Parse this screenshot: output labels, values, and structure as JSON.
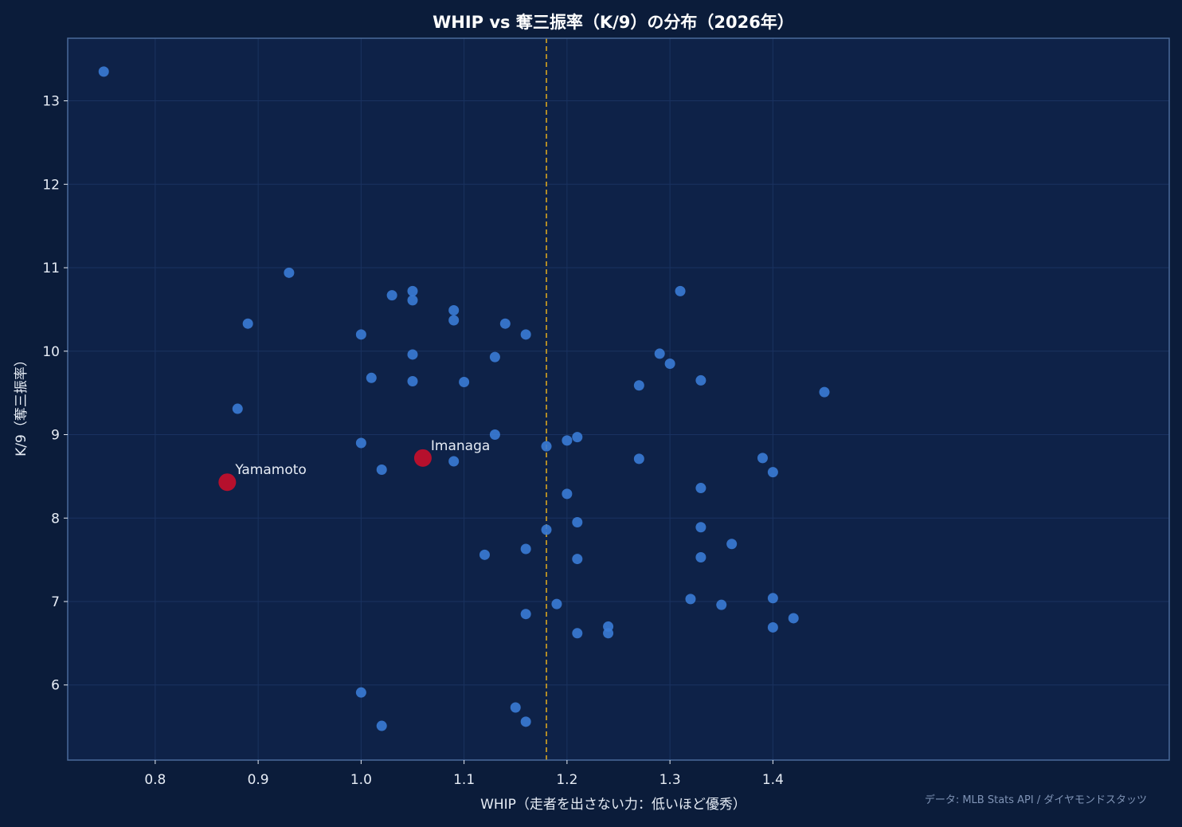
{
  "chart_data": {
    "type": "scatter",
    "title": "WHIP vs 奪三振率（K/9）の分布（2026年）",
    "xlabel": "WHIP（走者を出さない力：低いほど優秀）",
    "ylabel": "K/9（奪三振率）",
    "source": "データ: MLB Stats API / ダイヤモンドスタッツ",
    "xlim": [
      0.715,
      1.785
    ],
    "ylim": [
      5.1,
      13.75
    ],
    "xticks": [
      0.8,
      0.9,
      1.0,
      1.1,
      1.2,
      1.3,
      1.4
    ],
    "yticks": [
      6,
      7,
      8,
      9,
      10,
      11,
      12,
      13
    ],
    "x_tick_labels": [
      "0.8",
      "0.9",
      "1.0",
      "1.1",
      "1.2",
      "1.3",
      "1.4"
    ],
    "y_tick_labels": [
      "6",
      "7",
      "8",
      "9",
      "10",
      "11",
      "12",
      "13"
    ],
    "reference_line_x": 1.18,
    "grid": true,
    "colors": {
      "background": "#0b1c3a",
      "plot_area": "#0e2248",
      "point": "#3a7bd5",
      "highlight": "#c0102c",
      "reference_line": "#d9a520",
      "text": "#ffffff",
      "tick_text": "#e6ecf5",
      "source_text": "#7f93b5",
      "grid": "#1a3260",
      "frame": "#4a6a9a"
    },
    "series": [
      {
        "points": [
          [
            0.75,
            13.35
          ],
          [
            0.88,
            9.31
          ],
          [
            0.89,
            10.33
          ],
          [
            0.93,
            10.94
          ],
          [
            1.0,
            10.2
          ],
          [
            1.0,
            8.9
          ],
          [
            1.0,
            5.91
          ],
          [
            1.01,
            9.68
          ],
          [
            1.02,
            8.58
          ],
          [
            1.02,
            5.51
          ],
          [
            1.03,
            10.67
          ],
          [
            1.05,
            10.72
          ],
          [
            1.05,
            10.61
          ],
          [
            1.05,
            9.96
          ],
          [
            1.05,
            9.64
          ],
          [
            1.09,
            10.49
          ],
          [
            1.09,
            10.37
          ],
          [
            1.09,
            8.68
          ],
          [
            1.1,
            9.63
          ],
          [
            1.12,
            7.56
          ],
          [
            1.13,
            9.93
          ],
          [
            1.13,
            9.0
          ],
          [
            1.14,
            10.33
          ],
          [
            1.15,
            5.73
          ],
          [
            1.16,
            10.2
          ],
          [
            1.16,
            7.63
          ],
          [
            1.16,
            6.85
          ],
          [
            1.16,
            5.56
          ],
          [
            1.18,
            8.86
          ],
          [
            1.18,
            7.86
          ],
          [
            1.19,
            6.97
          ],
          [
            1.2,
            8.93
          ],
          [
            1.2,
            8.29
          ],
          [
            1.21,
            8.97
          ],
          [
            1.21,
            7.95
          ],
          [
            1.21,
            7.51
          ],
          [
            1.21,
            6.62
          ],
          [
            1.24,
            6.7
          ],
          [
            1.24,
            6.62
          ],
          [
            1.27,
            9.59
          ],
          [
            1.27,
            8.71
          ],
          [
            1.29,
            9.97
          ],
          [
            1.3,
            9.85
          ],
          [
            1.31,
            10.72
          ],
          [
            1.32,
            7.03
          ],
          [
            1.33,
            9.65
          ],
          [
            1.33,
            8.36
          ],
          [
            1.33,
            7.89
          ],
          [
            1.33,
            7.53
          ],
          [
            1.35,
            6.96
          ],
          [
            1.36,
            7.69
          ],
          [
            1.39,
            8.72
          ],
          [
            1.4,
            8.55
          ],
          [
            1.4,
            7.04
          ],
          [
            1.4,
            6.69
          ],
          [
            1.42,
            6.8
          ],
          [
            1.45,
            9.51
          ]
        ]
      },
      {
        "points": [
          {
            "label": "Yamamoto",
            "x": 0.87,
            "y": 8.43
          },
          {
            "label": "Imanaga",
            "x": 1.06,
            "y": 8.72
          }
        ]
      }
    ]
  }
}
